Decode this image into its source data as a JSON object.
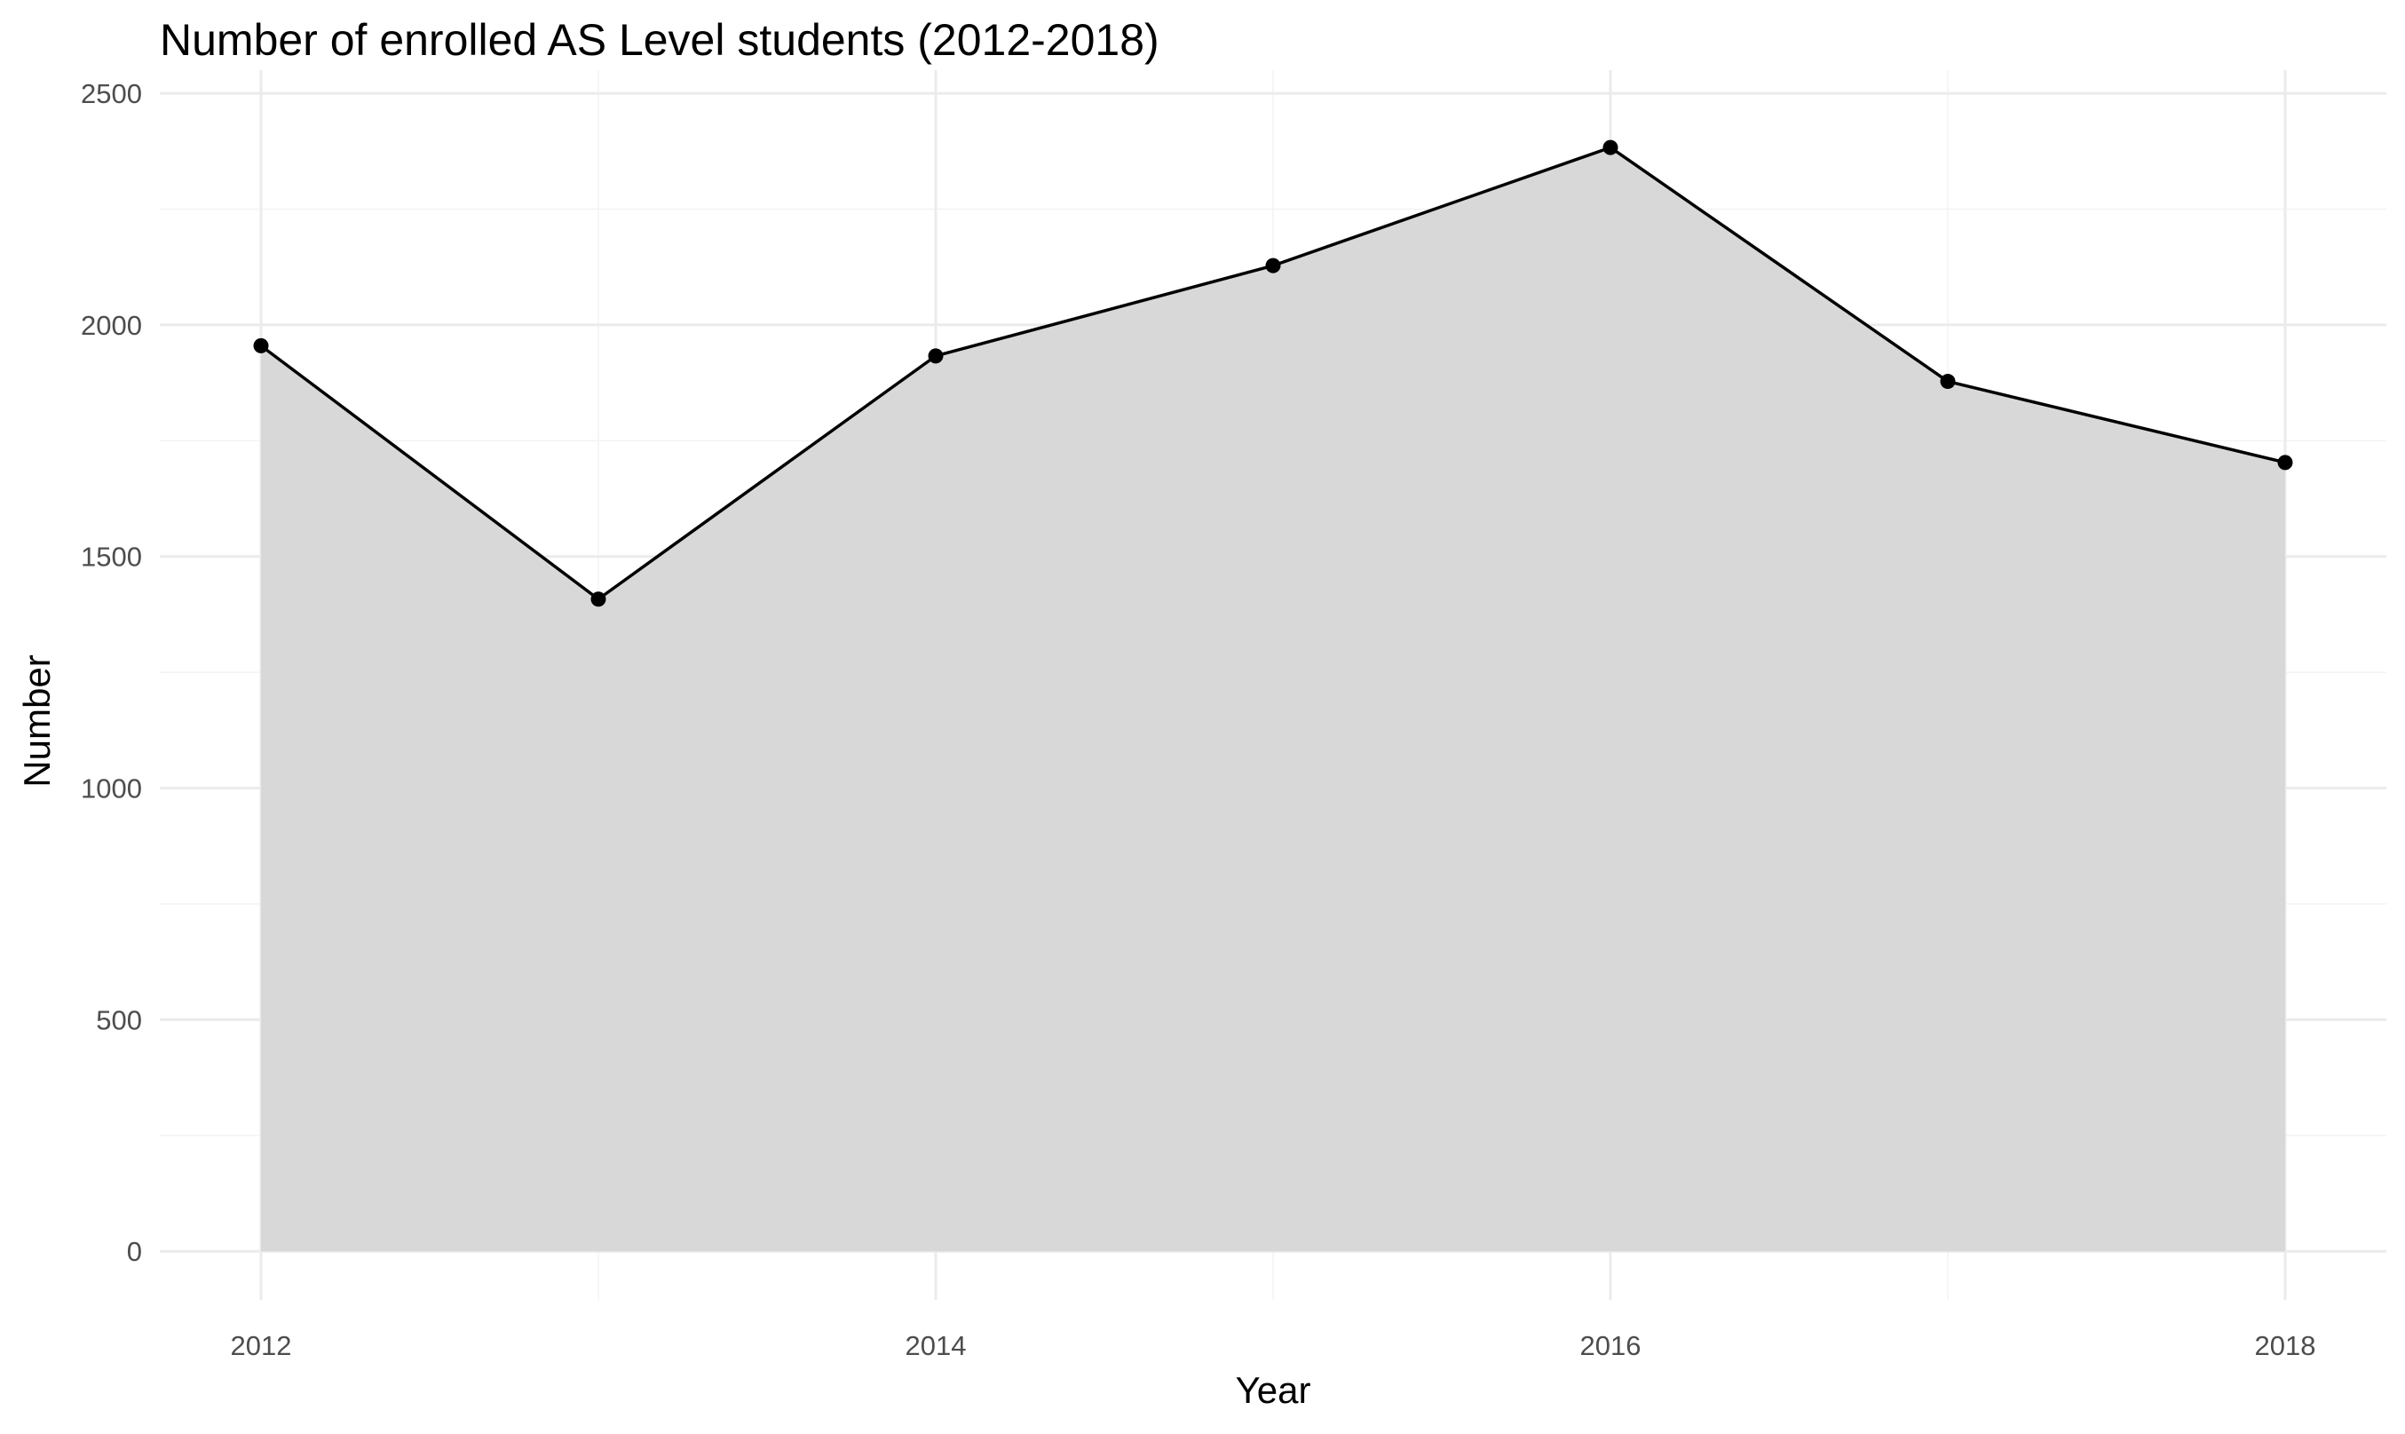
{
  "chart_data": {
    "type": "area",
    "title": "Number of enrolled AS Level students (2012-2018)",
    "xlabel": "Year",
    "ylabel": "Number",
    "x": [
      2012,
      2013,
      2014,
      2015,
      2016,
      2017,
      2018
    ],
    "values": [
      1955,
      1408,
      1933,
      2128,
      2383,
      1878,
      1703
    ],
    "xlim": [
      2011.7,
      2018.3
    ],
    "ylim": [
      -105,
      2550
    ],
    "x_ticks": [
      2012,
      2014,
      2016,
      2018
    ],
    "x_minor_ticks": [
      2013,
      2015,
      2017
    ],
    "y_ticks": [
      0,
      500,
      1000,
      1500,
      2000,
      2500
    ],
    "y_minor_ticks": [
      250,
      750,
      1250,
      1750,
      2250
    ],
    "grid": true,
    "legend": "none",
    "colors": {
      "area_fill": "#d6d6d6",
      "line": "#000000",
      "points": "#000000",
      "grid_major": "#ebebeb",
      "grid_minor": "#f3f3f3"
    }
  }
}
